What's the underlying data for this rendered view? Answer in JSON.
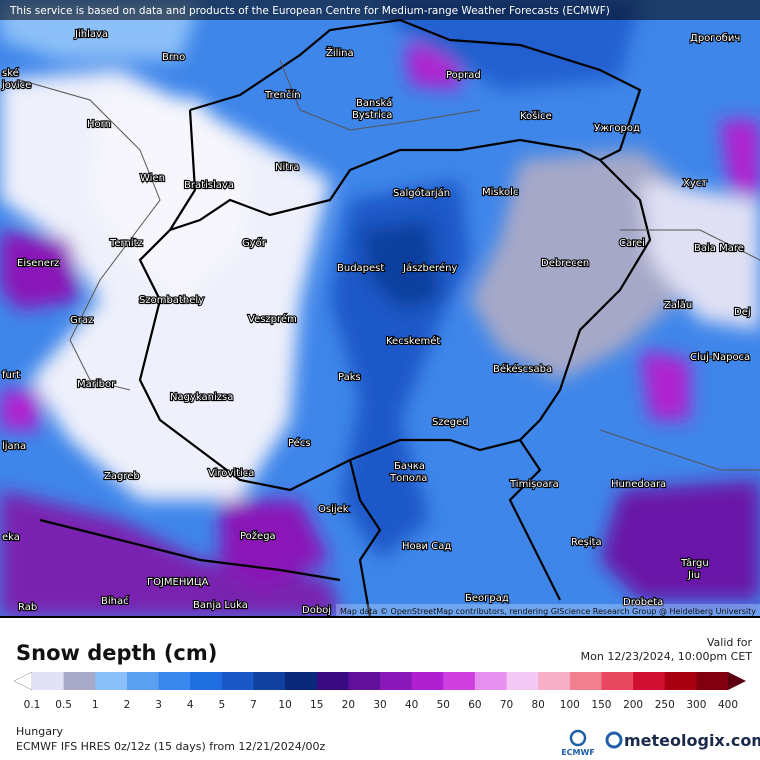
{
  "header": {
    "notice": "This service is based on data and products of the European Centre for Medium-range Weather Forecasts (ECMWF)"
  },
  "map": {
    "cities": [
      "Jihlava",
      "Brno",
      "Žilina",
      "Poprad",
      "Дрогобич",
      "ské",
      "jovice",
      "Trenčín",
      "Banská",
      "Bystrica",
      "Košice",
      "Ужгород",
      "Horn",
      "Nitra",
      "Wien",
      "Bratislava",
      "Salgótarján",
      "Miskolc",
      "Хуст",
      "Ternitz",
      "Győr",
      "Budapest",
      "Jászberény",
      "Debrecen",
      "Carei",
      "Baia Mare",
      "Eisenerz",
      "Szombathely",
      "Veszprém",
      "Zalău",
      "Graz",
      "Dej",
      "Kecskemét",
      "Cluj-Napoca",
      "furt",
      "Maribor",
      "Paks",
      "Békéscsaba",
      "Nagykanizsa",
      "Szeged",
      "Pécs",
      "ljana",
      "Zagreb",
      "Virovitica",
      "Бачка",
      "Топола",
      "Timișoara",
      "Hunedoara",
      "Osijek",
      "Požega",
      "Нови Сад",
      "Reșița",
      "eka",
      "Târgu",
      "Jiu",
      "ГОЈМЕНИЦА",
      "Bihać",
      "Banja Luka",
      "Doboj",
      "Београд",
      "Drobeta",
      "Rab"
    ],
    "attribution": "Map data © OpenStreetMap contributors, rendering GIScience Research Group @ Heidelberg University"
  },
  "legend": {
    "title": "Snow depth (cm)",
    "valid_label": "Valid for",
    "valid_time": "Mon 12/23/2024, 10:00pm CET",
    "labels": [
      "0.1",
      "0.5",
      "1",
      "2",
      "3",
      "4",
      "5",
      "7",
      "10",
      "15",
      "20",
      "30",
      "40",
      "50",
      "60",
      "70",
      "80",
      "100",
      "150",
      "200",
      "250",
      "300",
      "400"
    ],
    "colors": [
      "#e2e2f6",
      "#a9a9c9",
      "#8cc0f8",
      "#5aa0f0",
      "#3a88ee",
      "#1f6ee0",
      "#1a58c8",
      "#1040a0",
      "#0a2878",
      "#3a0a80",
      "#60109a",
      "#8a18b8",
      "#b020d0",
      "#d040e0",
      "#e890f0",
      "#f4c8f4",
      "#f8b0c8",
      "#f08090",
      "#e84860",
      "#d01030",
      "#a80010",
      "#800010"
    ],
    "over_color": "#5a0010"
  },
  "footer": {
    "region": "Hungary",
    "model": "ECMWF IFS HRES 0z/12z (15 days) from 12/21/2024/00z",
    "ecmwf": "ECMWF",
    "brand": "meteologix.com"
  }
}
